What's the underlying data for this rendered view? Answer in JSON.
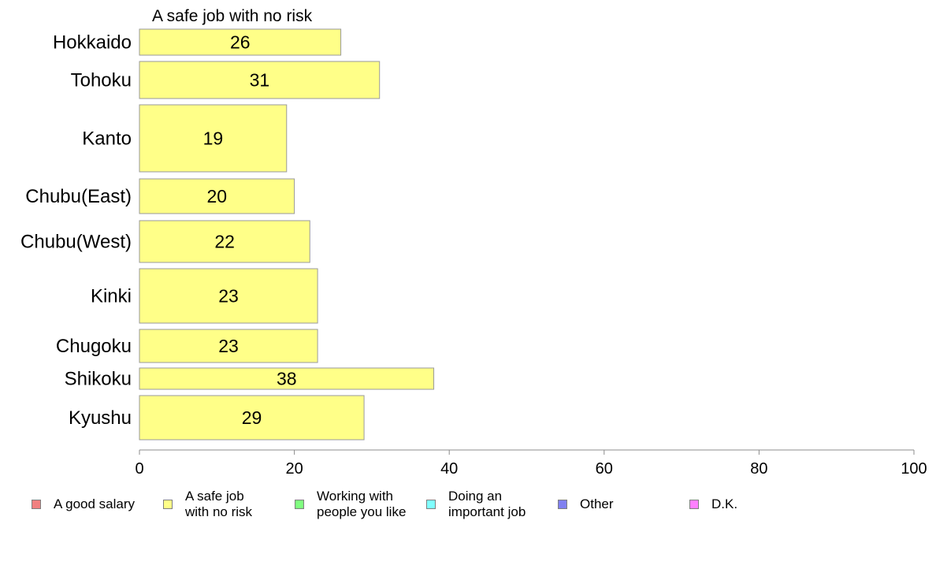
{
  "chart_data": {
    "type": "bar",
    "orientation": "horizontal",
    "title": "A safe job with no risk",
    "categories": [
      "Hokkaido",
      "Tohoku",
      "Kanto",
      "Chubu(East)",
      "Chubu(West)",
      "Kinki",
      "Chugoku",
      "Shikoku",
      "Kyushu"
    ],
    "series": [
      {
        "name": "A safe job with no risk",
        "values": [
          26,
          31,
          19,
          20,
          22,
          23,
          23,
          38,
          29
        ],
        "color": "#ffff88"
      }
    ],
    "data_labels": [
      "26",
      "31",
      "19",
      "20",
      "22",
      "23",
      "23",
      "38",
      "29"
    ],
    "xlim": [
      0,
      100
    ],
    "x_ticks": [
      "0",
      "20",
      "40",
      "60",
      "80",
      "100"
    ],
    "grid": false,
    "legend_position": "bottom"
  },
  "legend": {
    "items": [
      {
        "label": "A good salary",
        "color": "#f08080"
      },
      {
        "label": "A safe job\nwith no risk",
        "color": "#ffff88"
      },
      {
        "label": "Working with\npeople you like",
        "color": "#80ff80"
      },
      {
        "label": "Doing an\nimportant job",
        "color": "#80ffff"
      },
      {
        "label": "Other",
        "color": "#8080f0"
      },
      {
        "label": "D.K.",
        "color": "#ff80ff"
      }
    ]
  }
}
